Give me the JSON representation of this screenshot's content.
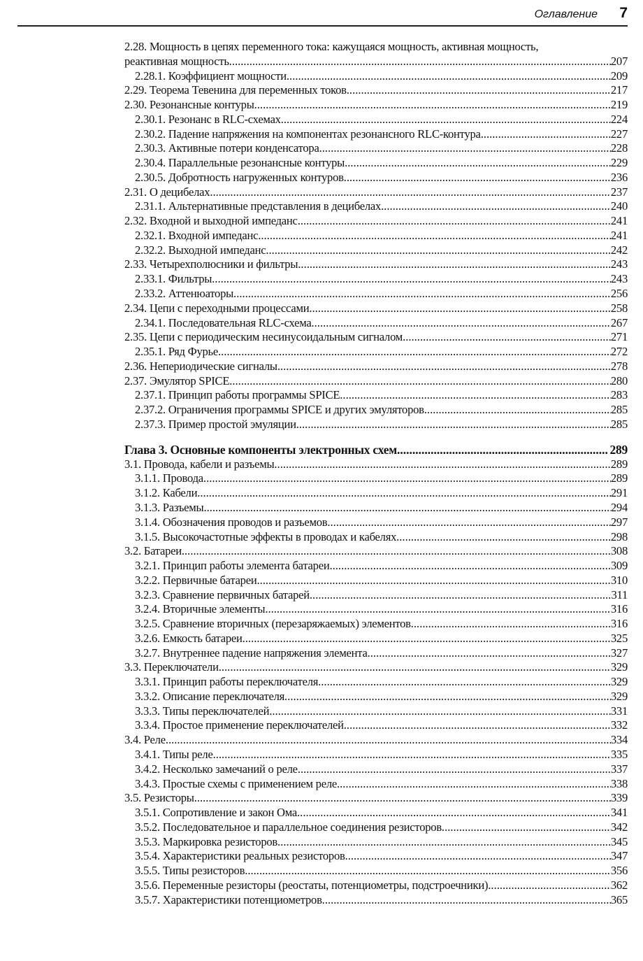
{
  "header": {
    "title": "Оглавление",
    "page_number": "7"
  },
  "toc": [
    {
      "level": 2,
      "text": "2.28. Мощность в цепях переменного тока: кажущаяся мощность, активная мощность,",
      "text_cont": "реактивная мощность",
      "page": "207"
    },
    {
      "level": 3,
      "text": "2.28.1. Коэффициент мощности",
      "page": "209"
    },
    {
      "level": 2,
      "text": "2.29. Теорема Тевенина для переменных токов",
      "page": "217"
    },
    {
      "level": 2,
      "text": "2.30. Резонансные контуры",
      "page": "219"
    },
    {
      "level": 3,
      "text": "2.30.1. Резонанс в RLC-схемах",
      "page": "224"
    },
    {
      "level": 3,
      "text": "2.30.2. Падение напряжения на компонентах резонансного RLC-контура",
      "page": "227"
    },
    {
      "level": 3,
      "text": "2.30.3. Активные потери конденсатора",
      "page": "228"
    },
    {
      "level": 3,
      "text": "2.30.4. Параллельные резонансные контуры",
      "page": "229"
    },
    {
      "level": 3,
      "text": "2.30.5. Добротность нагруженных контуров",
      "page": "236"
    },
    {
      "level": 2,
      "text": "2.31. О децибелах",
      "page": "237"
    },
    {
      "level": 3,
      "text": "2.31.1. Альтернативные представления в децибелах",
      "page": "240"
    },
    {
      "level": 2,
      "text": "2.32. Входной и выходной импеданс",
      "page": "241"
    },
    {
      "level": 3,
      "text": "2.32.1. Входной импеданс",
      "page": "241"
    },
    {
      "level": 3,
      "text": "2.32.2. Выходной импеданс",
      "page": "242"
    },
    {
      "level": 2,
      "text": "2.33. Четырехполюсники и фильтры",
      "page": "243"
    },
    {
      "level": 3,
      "text": "2.33.1. Фильтры",
      "page": "243"
    },
    {
      "level": 3,
      "text": "2.33.2. Аттенюаторы",
      "page": "256"
    },
    {
      "level": 2,
      "text": "2.34. Цепи с переходными процессами",
      "page": "258"
    },
    {
      "level": 3,
      "text": "2.34.1. Последовательная RLC-схема",
      "page": "267"
    },
    {
      "level": 2,
      "text": "2.35. Цепи с периодическим несинусоидальным сигналом",
      "page": "271"
    },
    {
      "level": 3,
      "text": "2.35.1. Ряд Фурье",
      "page": "272"
    },
    {
      "level": 2,
      "text": "2.36. Непериодические сигналы",
      "page": "278"
    },
    {
      "level": 2,
      "text": "2.37. Эмулятор SPICE",
      "page": "280"
    },
    {
      "level": 3,
      "text": "2.37.1. Принцип работы программы SPICE",
      "page": "283"
    },
    {
      "level": 3,
      "text": "2.37.2. Ограничения программы SPICE и других эмуляторов",
      "page": "285"
    },
    {
      "level": 3,
      "text": "2.37.3. Пример простой эмуляции",
      "page": "285"
    },
    {
      "level": 1,
      "text": "Глава 3. Основные компоненты электронных схем",
      "page": "289"
    },
    {
      "level": 2,
      "text": "3.1. Провода, кабели и разъемы",
      "page": "289"
    },
    {
      "level": 3,
      "text": "3.1.1. Провода",
      "page": "289"
    },
    {
      "level": 3,
      "text": "3.1.2. Кабели",
      "page": "291"
    },
    {
      "level": 3,
      "text": "3.1.3. Разъемы",
      "page": "294"
    },
    {
      "level": 3,
      "text": "3.1.4. Обозначения проводов и разъемов",
      "page": "297"
    },
    {
      "level": 3,
      "text": "3.1.5. Высокочастотные эффекты в проводах и кабелях",
      "page": "298"
    },
    {
      "level": 2,
      "text": "3.2. Батареи",
      "page": "308"
    },
    {
      "level": 3,
      "text": "3.2.1. Принцип работы элемента батареи",
      "page": "309"
    },
    {
      "level": 3,
      "text": "3.2.2. Первичные батареи",
      "page": "310"
    },
    {
      "level": 3,
      "text": "3.2.3. Сравнение первичных батарей",
      "page": "311"
    },
    {
      "level": 3,
      "text": "3.2.4. Вторичные элементы",
      "page": "316"
    },
    {
      "level": 3,
      "text": "3.2.5. Сравнение вторичных (перезаряжаемых) элементов",
      "page": "316"
    },
    {
      "level": 3,
      "text": "3.2.6. Емкость батареи",
      "page": "325"
    },
    {
      "level": 3,
      "text": "3.2.7. Внутреннее падение напряжения элемента",
      "page": "327"
    },
    {
      "level": 2,
      "text": "3.3. Переключатели",
      "page": "329"
    },
    {
      "level": 3,
      "text": "3.3.1. Принцип работы переключателя",
      "page": "329"
    },
    {
      "level": 3,
      "text": "3.3.2. Описание переключателя",
      "page": "329"
    },
    {
      "level": 3,
      "text": "3.3.3. Типы переключателей",
      "page": "331"
    },
    {
      "level": 3,
      "text": "3.3.4. Простое применение переключателей",
      "page": "332"
    },
    {
      "level": 2,
      "text": "3.4. Реле",
      "page": "334"
    },
    {
      "level": 3,
      "text": "3.4.1. Типы реле",
      "page": "335"
    },
    {
      "level": 3,
      "text": "3.4.2. Несколько замечаний о реле",
      "page": "337"
    },
    {
      "level": 3,
      "text": "3.4.3. Простые схемы с применением реле",
      "page": "338"
    },
    {
      "level": 2,
      "text": "3.5. Резисторы",
      "page": "339"
    },
    {
      "level": 3,
      "text": "3.5.1. Сопротивление и закон Ома",
      "page": "341"
    },
    {
      "level": 3,
      "text": "3.5.2. Последовательное и параллельное соединения резисторов",
      "page": "342"
    },
    {
      "level": 3,
      "text": "3.5.3. Маркировка резисторов",
      "page": "345"
    },
    {
      "level": 3,
      "text": "3.5.4. Характеристики реальных резисторов",
      "page": "347"
    },
    {
      "level": 3,
      "text": "3.5.5. Типы резисторов",
      "page": "356"
    },
    {
      "level": 3,
      "text": "3.5.6. Переменные резисторы (реостаты, потенциометры, подстроечники)",
      "page": "362"
    },
    {
      "level": 3,
      "text": "3.5.7. Характеристики потенциометров",
      "page": "365"
    }
  ]
}
